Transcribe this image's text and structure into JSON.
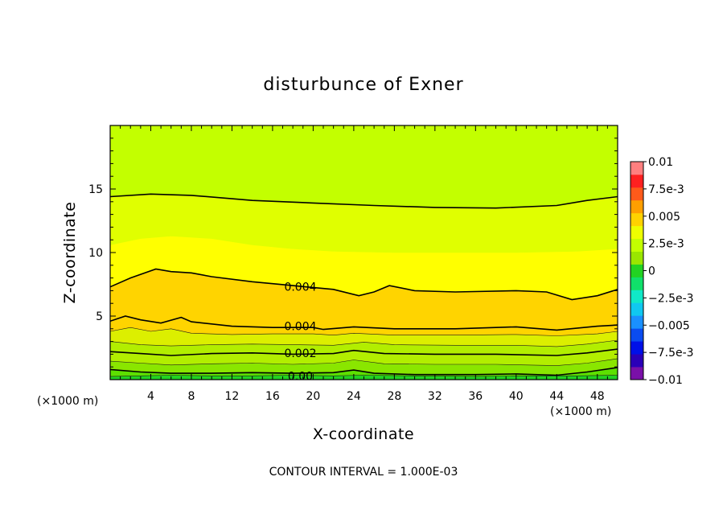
{
  "chart_data": {
    "type": "heatmap",
    "subtype": "filled-contour",
    "title": "disturbunce of Exner",
    "xlabel": "X-coordinate",
    "ylabel": "Z-coordinate",
    "x_unit": "(×1000 m)",
    "y_unit": "(×1000 m)",
    "xlim": [
      0,
      50
    ],
    "ylim": [
      0,
      20
    ],
    "x_ticks": [
      4,
      8,
      12,
      16,
      20,
      24,
      28,
      32,
      36,
      40,
      44,
      48
    ],
    "y_ticks": [
      5,
      10,
      15
    ],
    "contour_interval_text": "CONTOUR INTERVAL = 1.000E-03",
    "colorbar": {
      "labels": [
        "0.01",
        "7.5e-3",
        "0.005",
        "2.5e-3",
        "0",
        "−2.5e-3",
        "−0.005",
        "−7.5e-3",
        "−0.01"
      ],
      "min": -0.01,
      "max": 0.01,
      "levels": 16,
      "colors": [
        "#7a10a8",
        "#2a00b8",
        "#0010e8",
        "#0a4cf0",
        "#1a90ff",
        "#10c8f0",
        "#10e8c8",
        "#10e06a",
        "#22d322",
        "#9ae600",
        "#c3ff00",
        "#eeff00",
        "#ffd200",
        "#ff9f00",
        "#ff5a1a",
        "#ff2020",
        "#ff7f7f"
      ]
    },
    "field_bands": [
      {
        "name": "band-surface-1",
        "color": "#22d322",
        "value": 0.0005
      },
      {
        "name": "band-surface-2",
        "color": "#5de000",
        "value": 0.001
      },
      {
        "name": "band-low-1",
        "color": "#8ae600",
        "value": 0.0018
      },
      {
        "name": "band-low-2",
        "color": "#b2ee00",
        "value": 0.0025
      },
      {
        "name": "band-mid-1",
        "color": "#dcef00",
        "value": 0.0032
      },
      {
        "name": "band-peak",
        "color": "#ffd400",
        "value": 0.0045
      },
      {
        "name": "band-upper-1",
        "color": "#ffff00",
        "value": 0.0035
      },
      {
        "name": "band-upper-2",
        "color": "#e0ff00",
        "value": 0.0028
      },
      {
        "name": "band-top",
        "color": "#c3ff00",
        "value": 0.0022
      }
    ],
    "boundaries": [
      [
        [
          0,
          0.25
        ],
        [
          3,
          0.3
        ],
        [
          6,
          0.35
        ],
        [
          10,
          0.3
        ],
        [
          14,
          0.3
        ],
        [
          18,
          0.35
        ],
        [
          22,
          0.3
        ],
        [
          25,
          0.35
        ],
        [
          30,
          0.3
        ],
        [
          36,
          0.25
        ],
        [
          42,
          0.3
        ],
        [
          46,
          0.3
        ],
        [
          50,
          0.35
        ]
      ],
      [
        [
          0,
          0.8
        ],
        [
          3,
          0.6
        ],
        [
          6,
          0.5
        ],
        [
          10,
          0.5
        ],
        [
          14,
          0.55
        ],
        [
          18,
          0.5
        ],
        [
          22,
          0.55
        ],
        [
          24,
          0.75
        ],
        [
          26,
          0.5
        ],
        [
          30,
          0.4
        ],
        [
          36,
          0.4
        ],
        [
          40,
          0.45
        ],
        [
          44,
          0.35
        ],
        [
          47,
          0.6
        ],
        [
          50,
          0.95
        ]
      ],
      [
        [
          0,
          1.45
        ],
        [
          3,
          1.3
        ],
        [
          6,
          1.15
        ],
        [
          10,
          1.25
        ],
        [
          14,
          1.3
        ],
        [
          18,
          1.2
        ],
        [
          22,
          1.3
        ],
        [
          24,
          1.55
        ],
        [
          27,
          1.25
        ],
        [
          32,
          1.2
        ],
        [
          38,
          1.2
        ],
        [
          44,
          1.1
        ],
        [
          47,
          1.3
        ],
        [
          50,
          1.65
        ]
      ],
      [
        [
          0,
          2.2
        ],
        [
          3,
          2.05
        ],
        [
          6,
          1.9
        ],
        [
          10,
          2.05
        ],
        [
          14,
          2.1
        ],
        [
          18,
          2.0
        ],
        [
          22,
          2.05
        ],
        [
          24,
          2.3
        ],
        [
          27,
          2.05
        ],
        [
          32,
          2.0
        ],
        [
          38,
          2.0
        ],
        [
          44,
          1.9
        ],
        [
          47,
          2.1
        ],
        [
          50,
          2.4
        ]
      ],
      [
        [
          0,
          3.0
        ],
        [
          3,
          2.75
        ],
        [
          6,
          2.65
        ],
        [
          10,
          2.75
        ],
        [
          14,
          2.8
        ],
        [
          18,
          2.75
        ],
        [
          22,
          2.7
        ],
        [
          25,
          2.95
        ],
        [
          28,
          2.75
        ],
        [
          34,
          2.7
        ],
        [
          40,
          2.7
        ],
        [
          44,
          2.6
        ],
        [
          47,
          2.8
        ],
        [
          50,
          3.1
        ]
      ],
      [
        [
          0,
          3.8
        ],
        [
          2,
          4.1
        ],
        [
          4,
          3.8
        ],
        [
          6,
          4.0
        ],
        [
          8,
          3.65
        ],
        [
          12,
          3.55
        ],
        [
          16,
          3.6
        ],
        [
          20,
          3.6
        ],
        [
          22,
          3.5
        ],
        [
          24,
          3.65
        ],
        [
          28,
          3.5
        ],
        [
          34,
          3.5
        ],
        [
          40,
          3.55
        ],
        [
          44,
          3.45
        ],
        [
          48,
          3.6
        ],
        [
          50,
          3.8
        ]
      ],
      [
        [
          0,
          4.6
        ],
        [
          1.5,
          5.0
        ],
        [
          3,
          4.7
        ],
        [
          5,
          4.45
        ],
        [
          7,
          4.9
        ],
        [
          8,
          4.55
        ],
        [
          12,
          4.2
        ],
        [
          16,
          4.1
        ],
        [
          20,
          4.1
        ],
        [
          21,
          3.95
        ],
        [
          24,
          4.15
        ],
        [
          28,
          4.0
        ],
        [
          34,
          4.0
        ],
        [
          40,
          4.15
        ],
        [
          44,
          3.9
        ],
        [
          48,
          4.2
        ],
        [
          50,
          4.3
        ]
      ],
      [
        [
          0,
          7.3
        ],
        [
          2,
          8.0
        ],
        [
          4.5,
          8.7
        ],
        [
          6,
          8.5
        ],
        [
          8,
          8.4
        ],
        [
          10,
          8.1
        ],
        [
          14,
          7.7
        ],
        [
          18,
          7.4
        ],
        [
          22,
          7.1
        ],
        [
          24.5,
          6.6
        ],
        [
          26,
          6.9
        ],
        [
          27.5,
          7.4
        ],
        [
          30,
          7.0
        ],
        [
          34,
          6.9
        ],
        [
          40,
          7.0
        ],
        [
          43,
          6.9
        ],
        [
          45.5,
          6.3
        ],
        [
          48,
          6.6
        ],
        [
          50,
          7.1
        ]
      ],
      [
        [
          0,
          10.6
        ],
        [
          3,
          11.1
        ],
        [
          6,
          11.3
        ],
        [
          10,
          11.1
        ],
        [
          14,
          10.6
        ],
        [
          18,
          10.3
        ],
        [
          22,
          10.1
        ],
        [
          28,
          10.0
        ],
        [
          34,
          10.0
        ],
        [
          40,
          10.0
        ],
        [
          46,
          10.1
        ],
        [
          50,
          10.3
        ]
      ],
      [
        [
          0,
          14.4
        ],
        [
          4,
          14.6
        ],
        [
          8,
          14.5
        ],
        [
          14,
          14.1
        ],
        [
          20,
          13.9
        ],
        [
          26,
          13.7
        ],
        [
          32,
          13.55
        ],
        [
          38,
          13.5
        ],
        [
          44,
          13.7
        ],
        [
          47,
          14.1
        ],
        [
          50,
          14.4
        ]
      ]
    ],
    "contour_lines": [
      1,
      3,
      6,
      7,
      9
    ],
    "thin_lines": [
      0,
      2,
      4,
      5
    ],
    "contour_labels": [
      {
        "text": "0.004",
        "x": 17.0,
        "y": 7.3
      },
      {
        "text": "0.004",
        "x": 17.0,
        "y": 4.2
      },
      {
        "text": "0.002",
        "x": 17.0,
        "y": 2.1
      },
      {
        "text": "0.00",
        "x": 17.0,
        "y": 0.3
      }
    ]
  }
}
